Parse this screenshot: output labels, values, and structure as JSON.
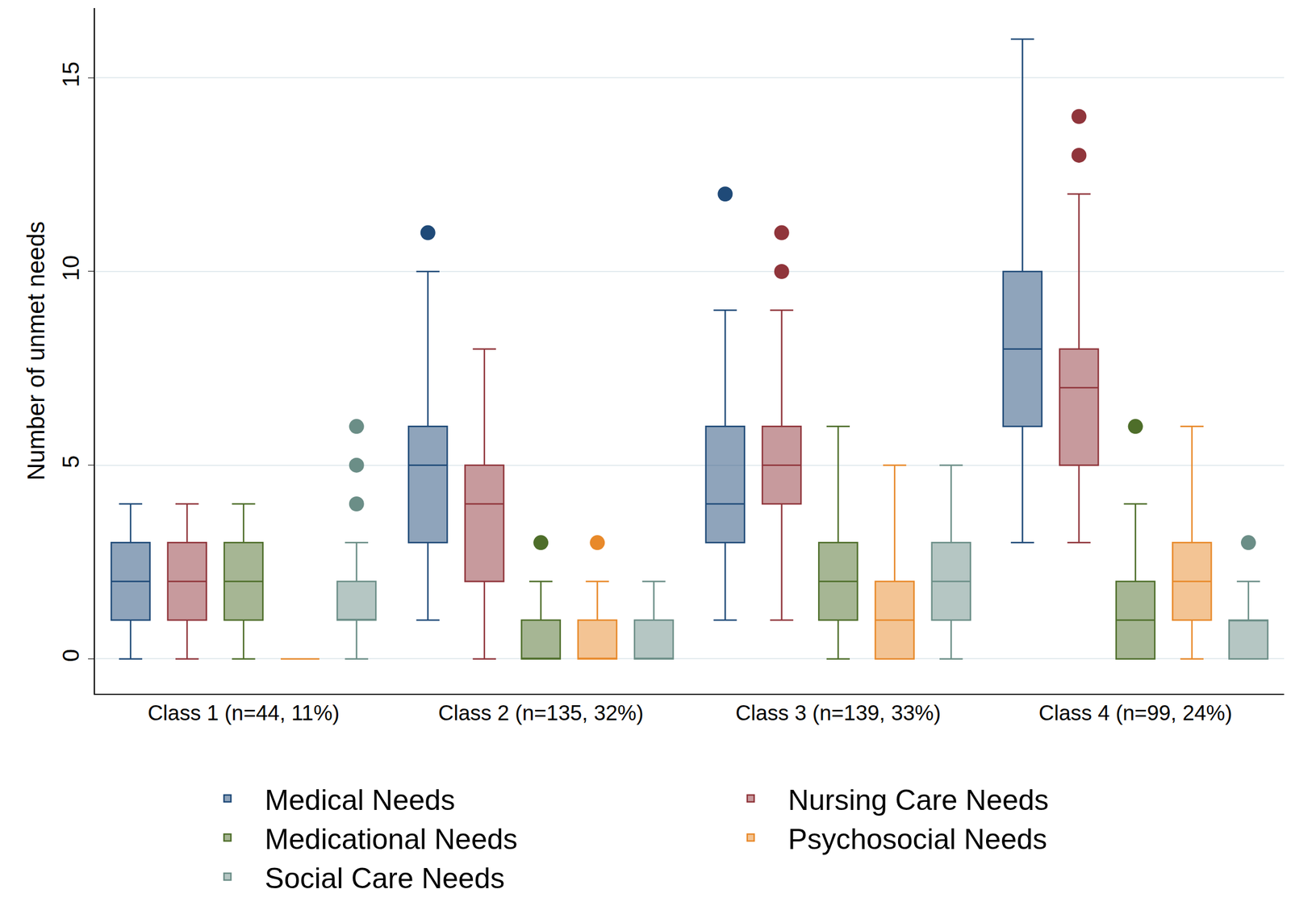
{
  "chart_data": {
    "type": "box",
    "y_label": "Number of unmet needs",
    "categories": [
      "Class 1 (n=44, 11%)",
      "Class 2 (n=135, 32%)",
      "Class 3 (n=139, 33%)",
      "Class 4 (n=99, 24%)"
    ],
    "ylim": [
      -0.9,
      16.8
    ],
    "yticks": [
      0,
      5,
      10,
      15
    ],
    "grid": true,
    "legend": "bottom",
    "series": [
      {
        "name": "Medical Needs",
        "color": "#1f4a78",
        "boxes": [
          {
            "lower_whisker": 0,
            "q1": 1,
            "median": 2,
            "q3": 3,
            "upper_whisker": 4,
            "outliers": []
          },
          {
            "lower_whisker": 1,
            "q1": 3,
            "median": 5,
            "q3": 6,
            "upper_whisker": 10,
            "outliers": [
              11
            ]
          },
          {
            "lower_whisker": 1,
            "q1": 3,
            "median": 4,
            "q3": 6,
            "upper_whisker": 9,
            "outliers": [
              12
            ]
          },
          {
            "lower_whisker": 3,
            "q1": 6,
            "median": 8,
            "q3": 10,
            "upper_whisker": 16,
            "outliers": []
          }
        ]
      },
      {
        "name": "Nursing Care Needs",
        "color": "#90353b",
        "boxes": [
          {
            "lower_whisker": 0,
            "q1": 1,
            "median": 2,
            "q3": 3,
            "upper_whisker": 4,
            "outliers": []
          },
          {
            "lower_whisker": 0,
            "q1": 2,
            "median": 4,
            "q3": 5,
            "upper_whisker": 8,
            "outliers": []
          },
          {
            "lower_whisker": 1,
            "q1": 4,
            "median": 5,
            "q3": 6,
            "upper_whisker": 9,
            "outliers": [
              10,
              11
            ]
          },
          {
            "lower_whisker": 3,
            "q1": 5,
            "median": 7,
            "q3": 8,
            "upper_whisker": 12,
            "outliers": [
              13,
              14
            ]
          }
        ]
      },
      {
        "name": "Medicational Needs",
        "color": "#4e6e2a",
        "boxes": [
          {
            "lower_whisker": 0,
            "q1": 1,
            "median": 2,
            "q3": 3,
            "upper_whisker": 4,
            "outliers": []
          },
          {
            "lower_whisker": 0,
            "q1": 0,
            "median": 0,
            "q3": 1,
            "upper_whisker": 2,
            "outliers": [
              3
            ]
          },
          {
            "lower_whisker": 0,
            "q1": 1,
            "median": 2,
            "q3": 3,
            "upper_whisker": 6,
            "outliers": []
          },
          {
            "lower_whisker": 0,
            "q1": 0,
            "median": 1,
            "q3": 2,
            "upper_whisker": 4,
            "outliers": [
              6
            ]
          }
        ]
      },
      {
        "name": "Psychosocial Needs",
        "color": "#e8892a",
        "boxes": [
          {
            "lower_whisker": 0,
            "q1": 0,
            "median": 0,
            "q3": 0,
            "upper_whisker": 0,
            "outliers": []
          },
          {
            "lower_whisker": 0,
            "q1": 0,
            "median": 0,
            "q3": 1,
            "upper_whisker": 2,
            "outliers": [
              3
            ]
          },
          {
            "lower_whisker": 0,
            "q1": 0,
            "median": 1,
            "q3": 2,
            "upper_whisker": 5,
            "outliers": []
          },
          {
            "lower_whisker": 0,
            "q1": 1,
            "median": 2,
            "q3": 3,
            "upper_whisker": 6,
            "outliers": []
          }
        ]
      },
      {
        "name": "Social Care Needs",
        "color": "#6b8e87",
        "boxes": [
          {
            "lower_whisker": 0,
            "q1": 1,
            "median": 1,
            "q3": 2,
            "upper_whisker": 3,
            "outliers": [
              4,
              5,
              6
            ]
          },
          {
            "lower_whisker": 0,
            "q1": 0,
            "median": 0,
            "q3": 1,
            "upper_whisker": 2,
            "outliers": []
          },
          {
            "lower_whisker": 0,
            "q1": 1,
            "median": 2,
            "q3": 3,
            "upper_whisker": 5,
            "outliers": []
          },
          {
            "lower_whisker": 0,
            "q1": 0,
            "median": 1,
            "q3": 1,
            "upper_whisker": 2,
            "outliers": [
              3
            ]
          }
        ]
      }
    ]
  }
}
